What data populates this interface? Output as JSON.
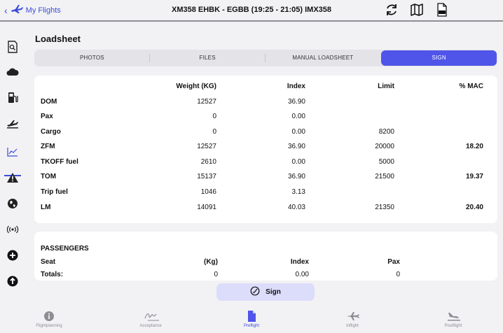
{
  "header": {
    "back_label": "My Flights",
    "title": "XM358 EHBK - EGBB (19:25 - 21:05) IMX358",
    "icons": [
      "refresh-icon",
      "map-icon",
      "pdf-icon"
    ]
  },
  "sidebar": {
    "icons": [
      "document-search-icon",
      "cloud-icon",
      "fuel-icon",
      "takeoff-icon",
      "chart-icon",
      "warning-icon",
      "globe-icon",
      "radio-icon",
      "add-circle-icon",
      "upload-circle-icon"
    ],
    "selected": "chart-icon"
  },
  "page_title": "Loadsheet",
  "segments": [
    {
      "label": "PHOTOS",
      "active": false
    },
    {
      "label": "FILES",
      "active": false
    },
    {
      "label": "MANUAL LOADSHEET",
      "active": false
    },
    {
      "label": "SIGN",
      "active": true
    }
  ],
  "loadsheet": {
    "headers": [
      "",
      "Weight (KG)",
      "Index",
      "Limit",
      "% MAC"
    ],
    "rows": [
      {
        "label": "DOM",
        "weight": "12527",
        "index": "36.90",
        "limit": "",
        "mac": ""
      },
      {
        "label": "Pax",
        "weight": "0",
        "index": "0.00",
        "limit": "",
        "mac": ""
      },
      {
        "label": "Cargo",
        "weight": "0",
        "index": "0.00",
        "limit": "8200",
        "mac": ""
      },
      {
        "label": "ZFM",
        "weight": "12527",
        "index": "36.90",
        "limit": "20000",
        "mac": "18.20"
      },
      {
        "label": "TKOFF fuel",
        "weight": "2610",
        "index": "0.00",
        "limit": "5000",
        "mac": ""
      },
      {
        "label": "TOM",
        "weight": "15137",
        "index": "36.90",
        "limit": "21500",
        "mac": "19.37"
      },
      {
        "label": "Trip fuel",
        "weight": "1046",
        "index": "3.13",
        "limit": "",
        "mac": ""
      },
      {
        "label": "LM",
        "weight": "14091",
        "index": "40.03",
        "limit": "21350",
        "mac": "20.40"
      }
    ]
  },
  "passengers": {
    "title": "PASSENGERS",
    "headers": [
      "Seat",
      "(Kg)",
      "Index",
      "Pax"
    ],
    "totals": {
      "label": "Totals:",
      "kg": "0",
      "index": "0.00",
      "pax": "0"
    }
  },
  "sign_button": "Sign",
  "tabs": [
    {
      "label": "Flightplanning",
      "icon": "info-icon",
      "active": false
    },
    {
      "label": "Acceptance",
      "icon": "signature-icon",
      "active": false
    },
    {
      "label": "Preflight",
      "icon": "document-icon",
      "active": true
    },
    {
      "label": "Inflight",
      "icon": "plane-icon",
      "active": false
    },
    {
      "label": "Postflight",
      "icon": "landing-icon",
      "active": false
    }
  ],
  "colors": {
    "accent": "#4f55e8",
    "link": "#3b4cd6"
  }
}
